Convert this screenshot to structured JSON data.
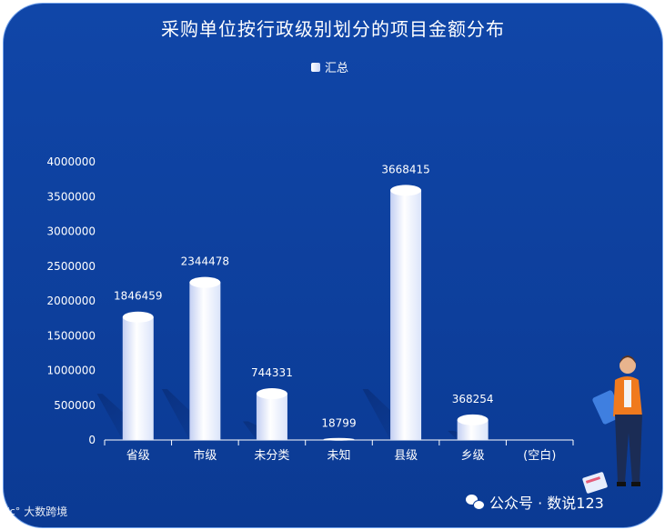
{
  "chart_data": {
    "type": "bar",
    "title": "采购单位按行政级别划分的项目金额分布",
    "legend": {
      "entries": [
        "汇总"
      ],
      "position": "top-center"
    },
    "categories": [
      "省级",
      "市级",
      "未分类",
      "未知",
      "县级",
      "乡级",
      "(空白)"
    ],
    "series": [
      {
        "name": "汇总",
        "values": [
          1846459,
          2344478,
          744331,
          18799,
          3668415,
          368254,
          null
        ]
      }
    ],
    "data_labels": [
      "1846459",
      "2344478",
      "744331",
      "18799",
      "3668415",
      "368254",
      ""
    ],
    "yticks": [
      "0",
      "500000",
      "1000000",
      "1500000",
      "2000000",
      "2500000",
      "3000000",
      "3500000",
      "4000000"
    ],
    "ylim": [
      0,
      4000000
    ],
    "grid": false,
    "colors": {
      "bar": "#ffffff",
      "bar_shade": "#c3cff3",
      "background": "#0d3f9c"
    }
  },
  "watermarks": {
    "left_text": "大数跨境",
    "right_text": "公众号 · 数说123"
  }
}
